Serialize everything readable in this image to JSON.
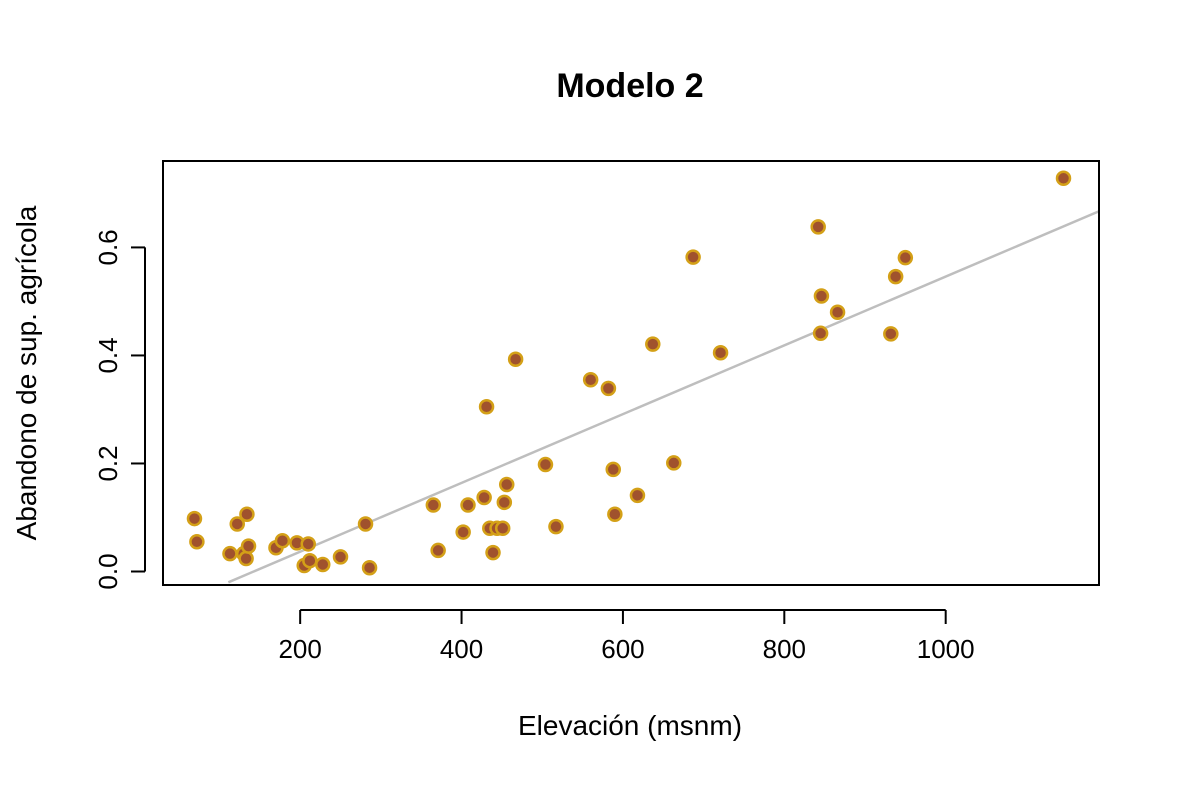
{
  "chart_data": {
    "type": "scatter",
    "title": "Modelo 2",
    "xlabel": "Elevación (msnm)",
    "ylabel": "Abandono de sup. agrícola",
    "xlim": [
      30,
      1190
    ],
    "ylim": [
      -0.025,
      0.76
    ],
    "xticks": [
      200,
      400,
      600,
      800,
      1000
    ],
    "yticks": [
      0.0,
      0.2,
      0.4,
      0.6
    ],
    "xtick_labels": [
      "200",
      "400",
      "600",
      "800",
      "1000"
    ],
    "ytick_labels": [
      "0.0",
      "0.2",
      "0.4",
      "0.6"
    ],
    "grid": false,
    "legend": "none",
    "colors": {
      "point_fill": "#a0522d",
      "point_stroke": "#d4a017",
      "fit_line": "#bebebe",
      "axis": "#000000"
    },
    "series": [
      {
        "type": "scatter",
        "points": [
          [
            69,
            0.098
          ],
          [
            72,
            0.055
          ],
          [
            113,
            0.033
          ],
          [
            122,
            0.088
          ],
          [
            130,
            0.033
          ],
          [
            133,
            0.024
          ],
          [
            134,
            0.106
          ],
          [
            136,
            0.047
          ],
          [
            170,
            0.044
          ],
          [
            178,
            0.057
          ],
          [
            196,
            0.053
          ],
          [
            205,
            0.011
          ],
          [
            210,
            0.051
          ],
          [
            212,
            0.02
          ],
          [
            228,
            0.013
          ],
          [
            250,
            0.027
          ],
          [
            281,
            0.088
          ],
          [
            286,
            0.007
          ],
          [
            365,
            0.123
          ],
          [
            371,
            0.039
          ],
          [
            402,
            0.073
          ],
          [
            408,
            0.123
          ],
          [
            428,
            0.137
          ],
          [
            431,
            0.305
          ],
          [
            435,
            0.08
          ],
          [
            439,
            0.035
          ],
          [
            444,
            0.08
          ],
          [
            451,
            0.08
          ],
          [
            453,
            0.128
          ],
          [
            456,
            0.161
          ],
          [
            467,
            0.393
          ],
          [
            504,
            0.198
          ],
          [
            517,
            0.083
          ],
          [
            560,
            0.355
          ],
          [
            582,
            0.339
          ],
          [
            588,
            0.189
          ],
          [
            590,
            0.106
          ],
          [
            618,
            0.141
          ],
          [
            637,
            0.421
          ],
          [
            663,
            0.201
          ],
          [
            687,
            0.582
          ],
          [
            721,
            0.405
          ],
          [
            842,
            0.638
          ],
          [
            845,
            0.441
          ],
          [
            846,
            0.51
          ],
          [
            866,
            0.48
          ],
          [
            932,
            0.44
          ],
          [
            938,
            0.546
          ],
          [
            950,
            0.581
          ],
          [
            1146,
            0.728
          ]
        ]
      },
      {
        "type": "line",
        "x": [
          111,
          1190
        ],
        "y": [
          -0.02,
          0.667
        ]
      }
    ]
  }
}
